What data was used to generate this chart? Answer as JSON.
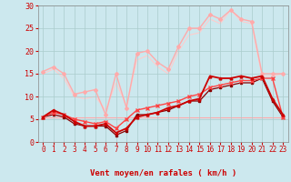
{
  "background_color": "#cce8ee",
  "grid_color": "#aacccc",
  "xlabel": "Vent moyen/en rafales ( km/h )",
  "xlabel_color": "#cc0000",
  "xlabel_fontsize": 6.5,
  "xtick_color": "#cc0000",
  "ytick_color": "#cc0000",
  "ytick_fontsize": 6,
  "xtick_fontsize": 5.5,
  "xlim": [
    -0.5,
    23.5
  ],
  "ylim": [
    0,
    30
  ],
  "yticks": [
    0,
    5,
    10,
    15,
    20,
    25,
    30
  ],
  "xticks": [
    0,
    1,
    2,
    3,
    4,
    5,
    6,
    7,
    8,
    9,
    10,
    11,
    12,
    13,
    14,
    15,
    16,
    17,
    18,
    19,
    20,
    21,
    22,
    23
  ],
  "lines": [
    {
      "x": [
        0,
        1,
        2,
        3,
        4,
        5,
        6,
        7,
        8,
        9,
        10,
        11,
        12,
        13,
        14,
        15,
        16,
        17,
        18,
        19,
        20,
        21,
        22,
        23
      ],
      "y": [
        15.5,
        16.5,
        15,
        10.5,
        11,
        11.5,
        6,
        15,
        7.5,
        19.5,
        20,
        17.5,
        16,
        21,
        25,
        25,
        28,
        27,
        29,
        27,
        26.5,
        15,
        15,
        15
      ],
      "color": "#ffaaaa",
      "linewidth": 1.0,
      "marker": "D",
      "markersize": 2.0,
      "zorder": 2
    },
    {
      "x": [
        0,
        1,
        2,
        3,
        4,
        5,
        6,
        7,
        8,
        9,
        10,
        11,
        12,
        13,
        14,
        15,
        16,
        17,
        18,
        19,
        20,
        21,
        22,
        23
      ],
      "y": [
        5.5,
        7,
        6,
        4.5,
        3.5,
        3.5,
        4,
        2,
        3,
        5.5,
        6,
        6.5,
        7.5,
        8,
        9,
        9.5,
        14.5,
        14,
        14,
        14.5,
        14,
        14.5,
        9.5,
        6
      ],
      "color": "#cc0000",
      "linewidth": 1.3,
      "marker": "^",
      "markersize": 2.0,
      "zorder": 5
    },
    {
      "x": [
        0,
        1,
        2,
        3,
        4,
        5,
        6,
        7,
        8,
        9,
        10,
        11,
        12,
        13,
        14,
        15,
        16,
        17,
        18,
        19,
        20,
        21,
        22,
        23
      ],
      "y": [
        5.5,
        6.5,
        6,
        5,
        4.5,
        4,
        4.5,
        3,
        5,
        7,
        7.5,
        8,
        8.5,
        9,
        10,
        10.5,
        12,
        12.5,
        13,
        13.5,
        13.5,
        14,
        14,
        5.5
      ],
      "color": "#ff4444",
      "linewidth": 1.0,
      "marker": "x",
      "markersize": 2.5,
      "zorder": 4
    },
    {
      "x": [
        0,
        1,
        2,
        3,
        4,
        5,
        6,
        7,
        8,
        9,
        10,
        11,
        12,
        13,
        14,
        15,
        16,
        17,
        18,
        19,
        20,
        21,
        22,
        23
      ],
      "y": [
        5.5,
        6,
        5.5,
        4,
        3.5,
        3.5,
        3.5,
        1.5,
        2.5,
        6,
        6,
        6.5,
        7,
        8,
        9,
        9,
        11.5,
        12,
        12.5,
        13,
        13,
        14,
        9,
        5.5
      ],
      "color": "#880000",
      "linewidth": 0.9,
      "marker": "s",
      "markersize": 1.8,
      "zorder": 3
    },
    {
      "x": [
        0,
        1,
        2,
        3,
        4,
        5,
        6,
        7,
        8,
        9,
        10,
        11,
        12,
        13,
        14,
        15,
        16,
        17,
        18,
        19,
        20,
        21,
        22,
        23
      ],
      "y": [
        15.0,
        16.0,
        14.0,
        10.0,
        9.5,
        10.0,
        7.0,
        13.0,
        8.0,
        18.0,
        19.0,
        16.5,
        15.0,
        20.0,
        23.5,
        24.0,
        27.0,
        26.0,
        29.0,
        26.5,
        26.0,
        14.5,
        14.5,
        15.0
      ],
      "color": "#ffcccc",
      "linewidth": 0.8,
      "marker": null,
      "markersize": 0,
      "zorder": 1
    },
    {
      "x": [
        0,
        23
      ],
      "y": [
        5.5,
        5.5
      ],
      "color": "#ffaaaa",
      "linewidth": 0.8,
      "marker": null,
      "markersize": 0,
      "zorder": 1
    }
  ]
}
